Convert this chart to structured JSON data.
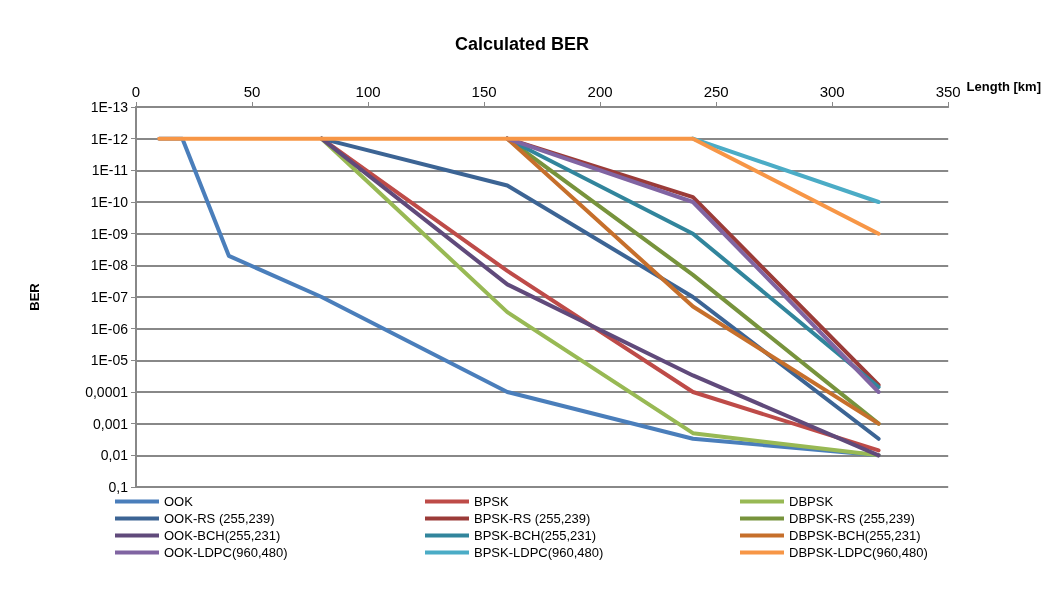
{
  "chart_data": {
    "type": "line",
    "title": "Calculated BER",
    "xlabel": "Length [km]",
    "ylabel": "BER",
    "x": [
      10,
      20,
      40,
      80,
      160,
      240,
      320
    ],
    "series": [
      {
        "name": "OOK",
        "color": "#4a7ebb",
        "values": [
          1e-12,
          1e-12,
          5e-09,
          1e-07,
          0.0001,
          0.003,
          0.01
        ]
      },
      {
        "name": "BPSK",
        "color": "#be4b48",
        "values": [
          null,
          null,
          null,
          1e-12,
          1.5e-08,
          0.0001,
          0.007
        ]
      },
      {
        "name": "DBPSK",
        "color": "#98b954",
        "values": [
          null,
          null,
          null,
          1e-12,
          3e-07,
          0.002,
          0.01
        ]
      },
      {
        "name": "OOK-RS (255,239)",
        "color": "#3c6494",
        "values": [
          null,
          null,
          null,
          1e-12,
          3e-11,
          1e-07,
          0.003
        ]
      },
      {
        "name": "BPSK-RS (255,239)",
        "color": "#9b3b38",
        "values": [
          null,
          null,
          null,
          null,
          1e-12,
          7e-11,
          6e-05
        ]
      },
      {
        "name": "DBPSK-RS (255,239)",
        "color": "#77933c",
        "values": [
          null,
          null,
          null,
          null,
          1e-12,
          2e-08,
          0.001
        ]
      },
      {
        "name": "OOK-BCH(255,231)",
        "color": "#604a7b",
        "values": [
          null,
          null,
          null,
          1e-12,
          4e-08,
          3e-05,
          0.01
        ]
      },
      {
        "name": "BPSK-BCH(255,231)",
        "color": "#31859c",
        "values": [
          null,
          null,
          null,
          null,
          1e-12,
          1e-09,
          7e-05
        ]
      },
      {
        "name": "DBPSK-BCH(255,231)",
        "color": "#c66f2b",
        "values": [
          null,
          null,
          null,
          null,
          1e-12,
          2e-07,
          0.001
        ]
      },
      {
        "name": "OOK-LDPC(960,480)",
        "color": "#8064a2",
        "values": [
          null,
          null,
          null,
          null,
          1e-12,
          1e-10,
          0.0001
        ]
      },
      {
        "name": "BPSK-LDPC(960,480)",
        "color": "#4bacc6",
        "values": [
          null,
          null,
          null,
          null,
          null,
          1e-12,
          1e-10
        ]
      },
      {
        "name": "DBPSK-LDPC(960,480)",
        "color": "#f79646",
        "values": [
          1e-12,
          1e-12,
          1e-12,
          1e-12,
          1e-12,
          1e-12,
          1e-09
        ]
      }
    ],
    "xlim": [
      0,
      350
    ],
    "xticks": [
      0,
      50,
      100,
      150,
      200,
      250,
      300,
      350
    ],
    "ylim": [
      0.1,
      1e-13
    ],
    "yticks": [
      {
        "value": 1e-13,
        "label": "1E-13"
      },
      {
        "value": 1e-12,
        "label": "1E-12"
      },
      {
        "value": 1e-11,
        "label": "1E-11"
      },
      {
        "value": 1e-10,
        "label": "1E-10"
      },
      {
        "value": 1e-09,
        "label": "1E-09"
      },
      {
        "value": 1e-08,
        "label": "1E-08"
      },
      {
        "value": 1e-07,
        "label": "1E-07"
      },
      {
        "value": 1e-06,
        "label": "1E-06"
      },
      {
        "value": 1e-05,
        "label": "1E-05"
      },
      {
        "value": 0.0001,
        "label": "0,0001"
      },
      {
        "value": 0.001,
        "label": "0,001"
      },
      {
        "value": 0.01,
        "label": "0,01"
      },
      {
        "value": 0.1,
        "label": "0,1"
      }
    ],
    "log": "y",
    "grid": "y",
    "legend": "bottom",
    "marker": "none",
    "line_style": "solid"
  }
}
